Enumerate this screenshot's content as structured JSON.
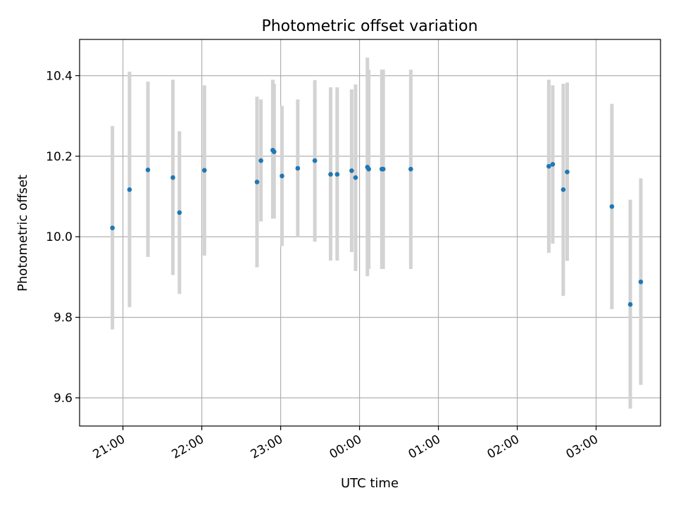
{
  "chart_data": {
    "type": "scatter",
    "title": "Photometric offset variation",
    "xlabel": "UTC time",
    "ylabel": "Photometric offset",
    "x_ticks": [
      "21:00",
      "22:00",
      "23:00",
      "00:00",
      "01:00",
      "02:00",
      "03:00"
    ],
    "y_ticks": [
      "9.6",
      "9.8",
      "10.0",
      "10.2",
      "10.4"
    ],
    "xlim": [
      "20:27",
      "03:49"
    ],
    "ylim": [
      9.53,
      10.49
    ],
    "grid": true,
    "marker_color": "#1f77b4",
    "errorbar_color": "#d3d3d3",
    "points": [
      {
        "x": "20:52",
        "y": 10.022,
        "y_low": 9.77,
        "y_high": 10.275
      },
      {
        "x": "21:05",
        "y": 10.117,
        "y_low": 9.825,
        "y_high": 10.41
      },
      {
        "x": "21:19",
        "y": 10.166,
        "y_low": 9.95,
        "y_high": 10.385
      },
      {
        "x": "21:38",
        "y": 10.147,
        "y_low": 9.905,
        "y_high": 10.39
      },
      {
        "x": "21:43",
        "y": 10.06,
        "y_low": 9.858,
        "y_high": 10.262
      },
      {
        "x": "22:02",
        "y": 10.165,
        "y_low": 9.953,
        "y_high": 10.376
      },
      {
        "x": "22:42",
        "y": 10.136,
        "y_low": 9.924,
        "y_high": 10.348
      },
      {
        "x": "22:45",
        "y": 10.189,
        "y_low": 10.038,
        "y_high": 10.341
      },
      {
        "x": "22:54",
        "y": 10.215,
        "y_low": 10.045,
        "y_high": 10.39
      },
      {
        "x": "22:55",
        "y": 10.211,
        "y_low": 10.045,
        "y_high": 10.38
      },
      {
        "x": "23:01",
        "y": 10.151,
        "y_low": 9.977,
        "y_high": 10.325
      },
      {
        "x": "23:13",
        "y": 10.17,
        "y_low": 10.0,
        "y_high": 10.341
      },
      {
        "x": "23:26",
        "y": 10.189,
        "y_low": 9.988,
        "y_high": 10.389
      },
      {
        "x": "23:38",
        "y": 10.155,
        "y_low": 9.941,
        "y_high": 10.371
      },
      {
        "x": "23:43",
        "y": 10.155,
        "y_low": 9.941,
        "y_high": 10.371
      },
      {
        "x": "23:54",
        "y": 10.164,
        "y_low": 9.962,
        "y_high": 10.366
      },
      {
        "x": "23:57",
        "y": 10.147,
        "y_low": 9.915,
        "y_high": 10.378
      },
      {
        "x": "00:06",
        "y": 10.173,
        "y_low": 9.902,
        "y_high": 10.445
      },
      {
        "x": "00:07",
        "y": 10.168,
        "y_low": 9.92,
        "y_high": 10.415
      },
      {
        "x": "00:17",
        "y": 10.168,
        "y_low": 9.92,
        "y_high": 10.415
      },
      {
        "x": "00:18",
        "y": 10.168,
        "y_low": 9.92,
        "y_high": 10.415
      },
      {
        "x": "00:39",
        "y": 10.168,
        "y_low": 9.92,
        "y_high": 10.415
      },
      {
        "x": "02:24",
        "y": 10.175,
        "y_low": 9.96,
        "y_high": 10.39
      },
      {
        "x": "02:27",
        "y": 10.18,
        "y_low": 9.983,
        "y_high": 10.376
      },
      {
        "x": "02:35",
        "y": 10.117,
        "y_low": 9.853,
        "y_high": 10.38
      },
      {
        "x": "02:38",
        "y": 10.161,
        "y_low": 9.94,
        "y_high": 10.383
      },
      {
        "x": "03:12",
        "y": 10.075,
        "y_low": 9.82,
        "y_high": 10.33
      },
      {
        "x": "03:26",
        "y": 9.832,
        "y_low": 9.573,
        "y_high": 10.092
      },
      {
        "x": "03:34",
        "y": 9.888,
        "y_low": 9.632,
        "y_high": 10.145
      }
    ]
  }
}
